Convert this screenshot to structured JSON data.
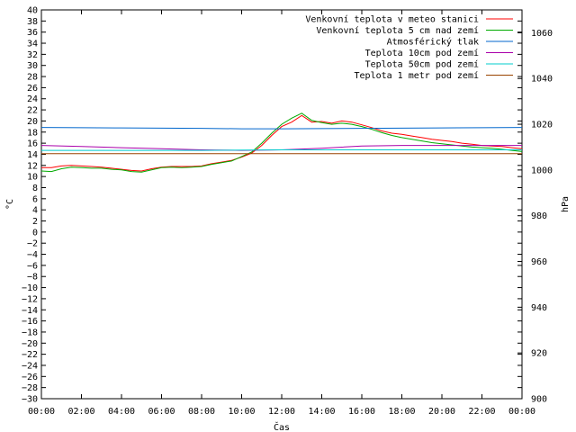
{
  "chart_data": {
    "type": "line",
    "xlabel": "Čas",
    "ylabel_left": "°C",
    "ylabel_right": "hPa",
    "x_ticks": [
      "00:00",
      "02:00",
      "04:00",
      "06:00",
      "08:00",
      "10:00",
      "12:00",
      "14:00",
      "16:00",
      "18:00",
      "20:00",
      "22:00",
      "00:00"
    ],
    "ylim_left": [
      -30,
      40
    ],
    "y_ticks_left_step": 2,
    "ylim_right": [
      900,
      1070
    ],
    "y_ticks_right": [
      900,
      920,
      940,
      960,
      980,
      1000,
      1020,
      1040,
      1060
    ],
    "x_range_hours": [
      0,
      24
    ],
    "legend_position": "top-right",
    "grid": false,
    "series": [
      {
        "name": "Venkovní teplota v meteo stanici",
        "color": "#ff0000",
        "axis": "left",
        "x": [
          0,
          0.5,
          1,
          1.5,
          2,
          2.5,
          3,
          3.5,
          4,
          4.5,
          5,
          5.5,
          6,
          6.5,
          7,
          7.5,
          8,
          8.5,
          9,
          9.5,
          10,
          10.5,
          11,
          11.5,
          12,
          12.5,
          13,
          13.5,
          14,
          14.5,
          15,
          15.5,
          16,
          16.5,
          17,
          17.5,
          18,
          18.5,
          19,
          19.5,
          20,
          20.5,
          21,
          21.5,
          22,
          22.5,
          23,
          23.5,
          24
        ],
        "values": [
          11.6,
          11.6,
          11.9,
          12.0,
          11.9,
          11.8,
          11.7,
          11.5,
          11.3,
          11.1,
          11.0,
          11.4,
          11.7,
          11.8,
          11.8,
          11.8,
          11.9,
          12.3,
          12.6,
          12.9,
          13.5,
          14.2,
          15.6,
          17.4,
          19.0,
          19.8,
          21.0,
          19.8,
          19.9,
          19.6,
          20.0,
          19.8,
          19.3,
          18.8,
          18.2,
          17.8,
          17.6,
          17.3,
          17.0,
          16.7,
          16.5,
          16.3,
          16.0,
          15.8,
          15.6,
          15.5,
          15.4,
          15.2,
          15.0
        ]
      },
      {
        "name": "Venkovní teplota 5 cm nad zemí",
        "color": "#00aa00",
        "axis": "left",
        "x": [
          0,
          0.5,
          1,
          1.5,
          2,
          2.5,
          3,
          3.5,
          4,
          4.5,
          5,
          5.5,
          6,
          6.5,
          7,
          7.5,
          8,
          8.5,
          9,
          9.5,
          10,
          10.5,
          11,
          11.5,
          12,
          12.5,
          13,
          13.5,
          14,
          14.5,
          15,
          15.5,
          16,
          16.5,
          17,
          17.5,
          18,
          18.5,
          19,
          19.5,
          20,
          20.5,
          21,
          21.5,
          22,
          22.5,
          23,
          23.5,
          24
        ],
        "values": [
          11.0,
          10.9,
          11.4,
          11.7,
          11.6,
          11.5,
          11.5,
          11.3,
          11.2,
          10.9,
          10.8,
          11.2,
          11.6,
          11.7,
          11.6,
          11.7,
          11.8,
          12.2,
          12.5,
          12.8,
          13.6,
          14.4,
          16.0,
          17.8,
          19.4,
          20.5,
          21.4,
          20.1,
          19.7,
          19.4,
          19.6,
          19.4,
          19.0,
          18.5,
          17.9,
          17.4,
          17.0,
          16.7,
          16.4,
          16.1,
          15.9,
          15.7,
          15.5,
          15.3,
          15.2,
          15.1,
          14.9,
          14.7,
          14.5
        ]
      },
      {
        "name": "Atmosférický tlak",
        "color": "#0066cc",
        "axis": "right",
        "x": [
          0,
          2,
          4,
          6,
          8,
          10,
          12,
          14,
          16,
          18,
          20,
          22,
          24
        ],
        "values": [
          1018.6,
          1018.5,
          1018.4,
          1018.3,
          1018.2,
          1018.0,
          1018.0,
          1018.1,
          1018.2,
          1018.3,
          1018.4,
          1018.5,
          1018.6
        ]
      },
      {
        "name": "Teplota 10cm pod zemí",
        "color": "#aa00aa",
        "axis": "left",
        "x": [
          0,
          2,
          4,
          6,
          8,
          10,
          12,
          14,
          16,
          18,
          20,
          22,
          24
        ],
        "values": [
          15.6,
          15.4,
          15.2,
          15.0,
          14.8,
          14.7,
          14.8,
          15.1,
          15.5,
          15.6,
          15.6,
          15.6,
          15.6
        ]
      },
      {
        "name": "Teplota 50cm pod zemí",
        "color": "#00cccc",
        "axis": "left",
        "x": [
          0,
          4,
          8,
          12,
          16,
          20,
          24
        ],
        "values": [
          14.7,
          14.7,
          14.7,
          14.8,
          14.8,
          14.8,
          14.8
        ]
      },
      {
        "name": "Teplota 1 metr pod zemí",
        "color": "#994400",
        "axis": "left",
        "x": [
          0,
          24
        ],
        "values": [
          14.1,
          14.1
        ]
      }
    ]
  }
}
